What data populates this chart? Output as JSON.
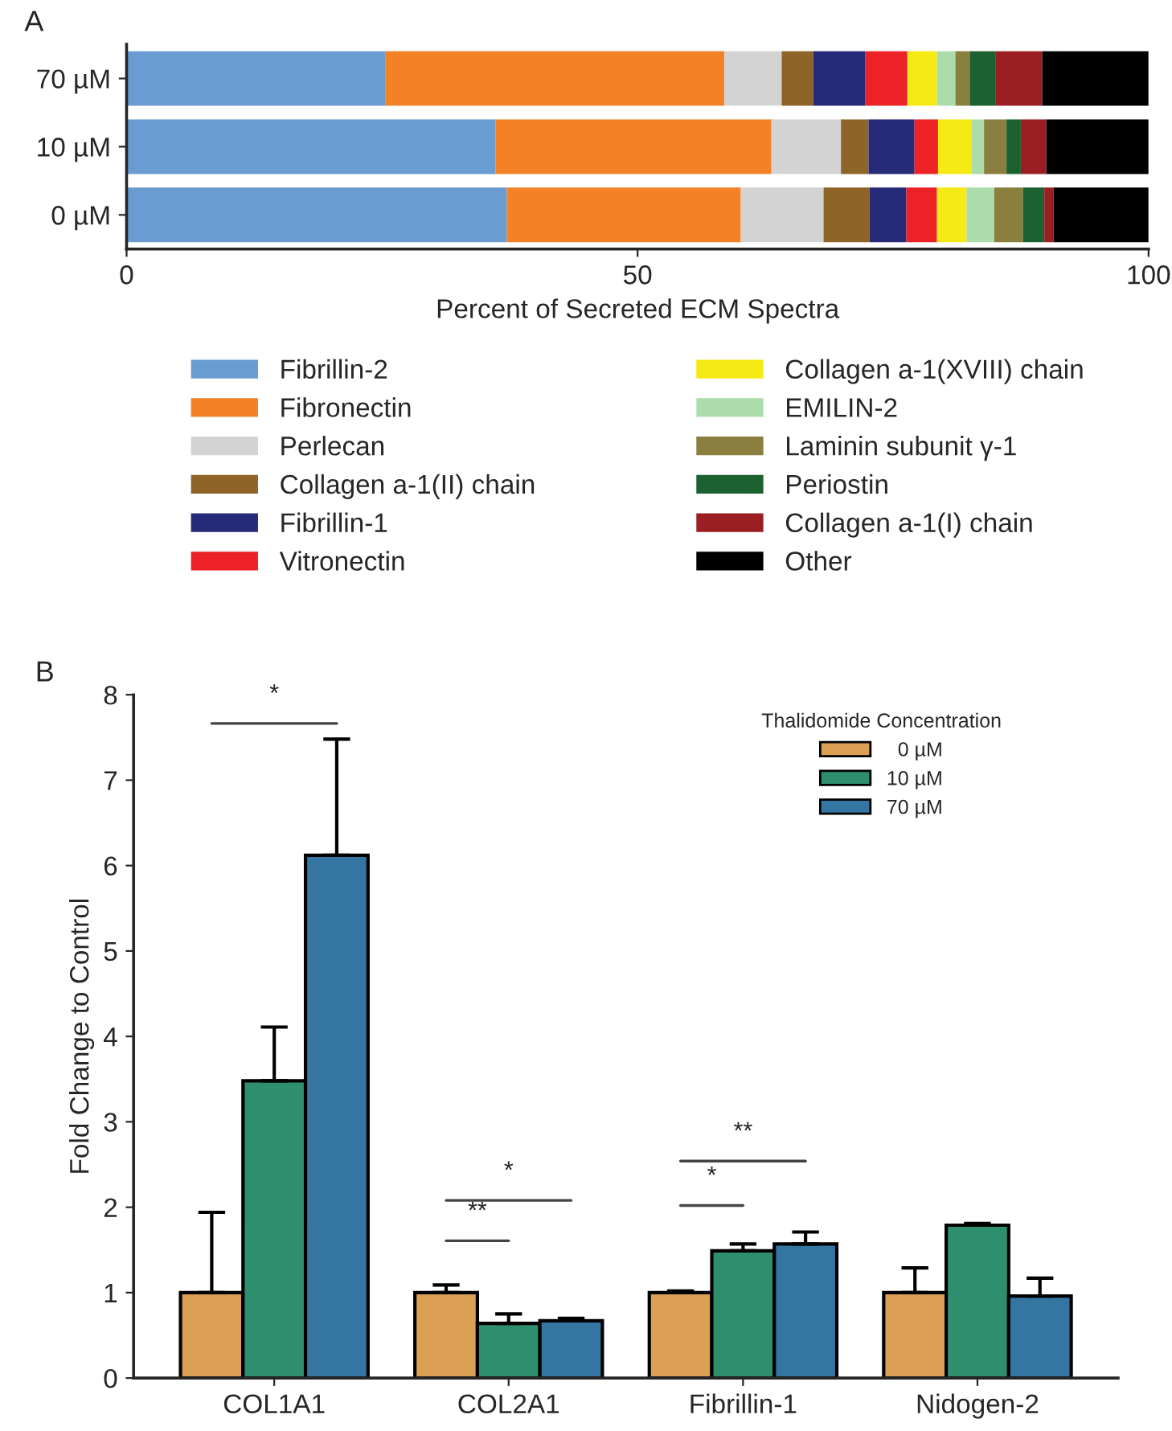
{
  "chart_data": [
    {
      "type": "bar",
      "title": "A",
      "orientation": "horizontal",
      "stacked": true,
      "categories": [
        "70 µM",
        "10 µM",
        "0 µM"
      ],
      "xlabel": "Percent of Secreted ECM Spectra",
      "xlim": [
        0,
        100
      ],
      "xticks": [
        0,
        50,
        100
      ],
      "legend": "bottom",
      "series": [
        {
          "name": "Fibrillin-2",
          "color": "#6a9bd1",
          "values": [
            25.3,
            36.1,
            37.2
          ]
        },
        {
          "name": "Fibronectin",
          "color": "#f28225",
          "values": [
            33.2,
            27.0,
            22.9
          ]
        },
        {
          "name": "Perlecan",
          "color": "#d3d3d3",
          "values": [
            5.6,
            6.8,
            8.1
          ]
        },
        {
          "name": "Collagen a-1(II) chain",
          "color": "#8f6428",
          "values": [
            3.1,
            2.7,
            4.5
          ]
        },
        {
          "name": "Fibrillin-1",
          "color": "#262a78",
          "values": [
            5.1,
            4.5,
            3.6
          ]
        },
        {
          "name": "Vitronectin",
          "color": "#ec2227",
          "values": [
            4.1,
            2.3,
            3.0
          ]
        },
        {
          "name": "Collagen a-1(XVIII) chain",
          "color": "#f5ea14",
          "values": [
            2.9,
            3.3,
            2.9
          ]
        },
        {
          "name": "EMILIN-2",
          "color": "#acdcac",
          "values": [
            1.8,
            1.2,
            2.7
          ]
        },
        {
          "name": "Laminin subunit γ-1",
          "color": "#8a7f3e",
          "values": [
            1.4,
            2.2,
            2.8
          ]
        },
        {
          "name": "Periostin",
          "color": "#1c6130",
          "values": [
            2.5,
            1.4,
            2.1
          ]
        },
        {
          "name": "Collagen a-1(I) chain",
          "color": "#9a1e22",
          "values": [
            4.6,
            2.5,
            0.9
          ]
        },
        {
          "name": "Other",
          "color": "#000000",
          "values": [
            10.4,
            10.0,
            9.3
          ]
        }
      ]
    },
    {
      "type": "bar",
      "title": "B",
      "categories": [
        "COL1A1",
        "COL2A1",
        "Fibrillin-1",
        "Nidogen-2"
      ],
      "ylabel": "Fold Change to Control",
      "ylim": [
        0,
        8
      ],
      "yticks": [
        0,
        1,
        2,
        3,
        4,
        5,
        6,
        7,
        8
      ],
      "legend": "top right",
      "legend_title": "Thalidomide Concentration",
      "series": [
        {
          "name": "  0 µM",
          "color": "#dca054",
          "values": [
            1.0,
            1.0,
            1.0,
            1.0
          ],
          "errors": [
            [
              1.0,
              1.94
            ],
            [
              1.0,
              1.09
            ],
            [
              1.0,
              1.02
            ],
            [
              1.0,
              1.29
            ]
          ]
        },
        {
          "name": "10 µM",
          "color": "#2e8f6e",
          "values": [
            3.48,
            0.64,
            1.49,
            1.79
          ],
          "errors": [
            [
              3.48,
              4.11
            ],
            [
              0.64,
              0.75
            ],
            [
              1.49,
              1.57
            ],
            [
              1.79,
              1.81
            ]
          ]
        },
        {
          "name": "70 µM",
          "color": "#3475a2",
          "values": [
            6.12,
            0.67,
            1.57,
            0.96
          ],
          "errors": [
            [
              6.12,
              7.48
            ],
            [
              0.67,
              0.7
            ],
            [
              1.57,
              1.71
            ],
            [
              0.96,
              1.17
            ]
          ]
        }
      ],
      "annotations": [
        "*",
        "*",
        "**",
        "**",
        "*"
      ]
    }
  ]
}
